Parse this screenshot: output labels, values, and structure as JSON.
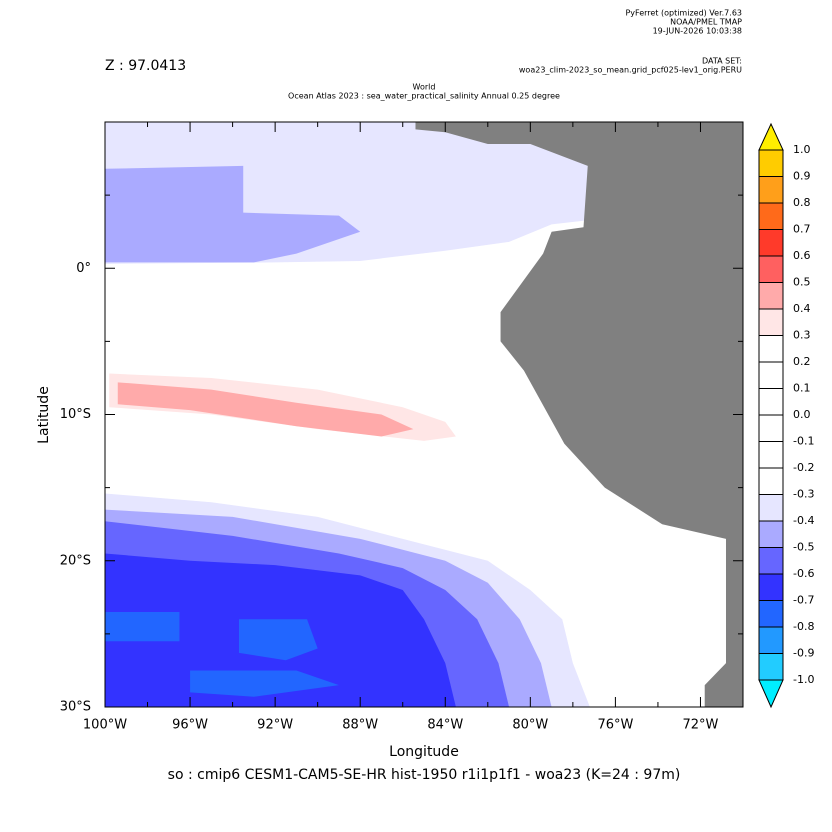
{
  "header": {
    "program": "PyFerret (optimized) Ver.7.63",
    "lab": "NOAA/PMEL TMAP",
    "date": "19-JUN-2026 10:03:38",
    "dataset_label": "DATA SET:",
    "dataset": "woa23_clim-2023_so_mean.grid_pcf025-lev1_orig.PERU",
    "z": "Z : 97.0413"
  },
  "chart_data": {
    "type": "map",
    "title": "World",
    "subtitle": "Ocean Atlas 2023 : sea_water_practical_salinity Annual  0.25 degree",
    "x_label": "Longitude",
    "y_label": "Latitude",
    "footer": "so : cmip6 CESM1-CAM5-SE-HR hist-1950 r1i1p1f1 - woa23  (K=24 : 97m)",
    "xlim": [
      -100,
      -70
    ],
    "ylim": [
      -30,
      10
    ],
    "xticks": [
      {
        "value": -100,
        "label": "100°W"
      },
      {
        "value": -96,
        "label": "96°W"
      },
      {
        "value": -92,
        "label": "92°W"
      },
      {
        "value": -88,
        "label": "88°W"
      },
      {
        "value": -84,
        "label": "84°W"
      },
      {
        "value": -80,
        "label": "80°W"
      },
      {
        "value": -76,
        "label": "76°W"
      },
      {
        "value": -72,
        "label": "72°W"
      }
    ],
    "xminorticks": [
      -98,
      -94,
      -90,
      -86,
      -82,
      -78,
      -74
    ],
    "yticks": [
      {
        "value": 0,
        "label": "0°"
      },
      {
        "value": -10,
        "label": "10°S"
      },
      {
        "value": -20,
        "label": "20°S"
      },
      {
        "value": -30,
        "label": "30°S"
      }
    ],
    "yminorticks": [
      5,
      -5,
      -15,
      -25
    ],
    "land_color": "#808080",
    "ocean_color": "#ffffff",
    "land": [
      [
        -85.4,
        10
      ],
      [
        -70,
        10
      ],
      [
        -70,
        -30
      ],
      [
        -71.8,
        -30
      ],
      [
        -71.8,
        -28.5
      ],
      [
        -70.8,
        -27
      ],
      [
        -70.8,
        -18.5
      ],
      [
        -73.8,
        -17.5
      ],
      [
        -76.5,
        -15
      ],
      [
        -78.4,
        -12
      ],
      [
        -80.3,
        -7
      ],
      [
        -81.4,
        -5
      ],
      [
        -81.4,
        -3
      ],
      [
        -80.4,
        -1
      ],
      [
        -79.4,
        1
      ],
      [
        -79,
        2.5
      ],
      [
        -77.5,
        2.8
      ],
      [
        -77.3,
        7
      ],
      [
        -80,
        8.5
      ],
      [
        -82,
        8.5
      ],
      [
        -84,
        9.3
      ],
      [
        -85.4,
        9.5
      ]
    ],
    "regions": [
      {
        "value": -0.35,
        "points": [
          [
            -100,
            10
          ],
          [
            -77.2,
            10
          ],
          [
            -77.2,
            3.3
          ],
          [
            -79,
            3
          ],
          [
            -81,
            1.8
          ],
          [
            -84,
            1.2
          ],
          [
            -88,
            0.5
          ],
          [
            -92,
            0.4
          ],
          [
            -100,
            0.3
          ]
        ]
      },
      {
        "value": -0.45,
        "points": [
          [
            -100,
            6.8
          ],
          [
            -93.5,
            7
          ],
          [
            -93.5,
            3.8
          ],
          [
            -89,
            3.6
          ],
          [
            -88,
            2.5
          ],
          [
            -91,
            1
          ],
          [
            -93,
            0.4
          ],
          [
            -100,
            0.4
          ]
        ]
      },
      {
        "value": 0.35,
        "points": [
          [
            -99.8,
            -7.2
          ],
          [
            -95,
            -7.5
          ],
          [
            -90,
            -8.3
          ],
          [
            -86,
            -9.5
          ],
          [
            -84,
            -10.5
          ],
          [
            -83.5,
            -11.5
          ],
          [
            -85,
            -11.8
          ],
          [
            -90,
            -11
          ],
          [
            -95,
            -10
          ],
          [
            -99.8,
            -9.5
          ]
        ]
      },
      {
        "value": 0.45,
        "points": [
          [
            -99.4,
            -7.8
          ],
          [
            -95,
            -8.3
          ],
          [
            -91,
            -9.2
          ],
          [
            -87,
            -10
          ],
          [
            -85.5,
            -11
          ],
          [
            -87,
            -11.5
          ],
          [
            -91,
            -10.8
          ],
          [
            -96,
            -9.7
          ],
          [
            -99.4,
            -9.3
          ]
        ]
      },
      {
        "value": -0.35,
        "points": [
          [
            -100,
            -15.4
          ],
          [
            -95,
            -16
          ],
          [
            -90,
            -17
          ],
          [
            -86,
            -18.5
          ],
          [
            -82,
            -20
          ],
          [
            -80,
            -22
          ],
          [
            -78.5,
            -24
          ],
          [
            -78,
            -27
          ],
          [
            -77.2,
            -30
          ],
          [
            -100,
            -30
          ]
        ]
      },
      {
        "value": -0.45,
        "points": [
          [
            -100,
            -16.5
          ],
          [
            -94,
            -17
          ],
          [
            -88,
            -18.5
          ],
          [
            -84,
            -20
          ],
          [
            -82,
            -21.5
          ],
          [
            -80.5,
            -24
          ],
          [
            -79.5,
            -27
          ],
          [
            -79,
            -30
          ],
          [
            -100,
            -30
          ]
        ]
      },
      {
        "value": -0.55,
        "points": [
          [
            -100,
            -17.3
          ],
          [
            -94,
            -18.3
          ],
          [
            -89,
            -19.5
          ],
          [
            -86,
            -20.5
          ],
          [
            -84,
            -22
          ],
          [
            -82.5,
            -24
          ],
          [
            -81.5,
            -27
          ],
          [
            -81,
            -30
          ],
          [
            -100,
            -30
          ]
        ]
      },
      {
        "value": -0.65,
        "points": [
          [
            -100,
            -19.5
          ],
          [
            -96,
            -20
          ],
          [
            -92,
            -20.3
          ],
          [
            -88,
            -21
          ],
          [
            -86,
            -22
          ],
          [
            -85,
            -24
          ],
          [
            -84,
            -27
          ],
          [
            -83.5,
            -30
          ],
          [
            -100,
            -30
          ]
        ]
      },
      {
        "value": -0.75,
        "points": [
          [
            -100,
            -23.5
          ],
          [
            -96.5,
            -23.5
          ],
          [
            -96.5,
            -25.5
          ],
          [
            -100,
            -25.5
          ]
        ]
      },
      {
        "value": -0.75,
        "points": [
          [
            -93.7,
            -24
          ],
          [
            -90.5,
            -24
          ],
          [
            -90,
            -26
          ],
          [
            -91.5,
            -26.8
          ],
          [
            -93.7,
            -26.3
          ]
        ]
      },
      {
        "value": -0.75,
        "points": [
          [
            -96,
            -27.5
          ],
          [
            -91,
            -27.5
          ],
          [
            -89,
            -28.5
          ],
          [
            -93,
            -29.3
          ],
          [
            -96,
            -29
          ]
        ]
      }
    ],
    "colorbar": {
      "levels": [
        {
          "value": 1.0,
          "label": "1.0"
        },
        0.9,
        0.8,
        0.7,
        0.6,
        0.5,
        0.4,
        0.3,
        0.2,
        0.1,
        {
          "value": 0.0,
          "label": "0.0"
        },
        -0.1,
        -0.2,
        -0.3,
        -0.4,
        -0.5,
        -0.6,
        -0.7,
        -0.8,
        -0.9,
        {
          "value": -1.0,
          "label": "-1.0"
        }
      ],
      "over_color": "#ffee00",
      "under_color": "#00eeff",
      "colors": [
        "#ffcc00",
        "#ff9f1a",
        "#ff6a1a",
        "#ff3a2a",
        "#ff6060",
        "#ffaaaa",
        "#ffe6e6",
        "#ffffff",
        "#ffffff",
        "#ffffff",
        "#ffffff",
        "#ffffff",
        "#ffffff",
        "#e6e6ff",
        "#aaaaff",
        "#6666ff",
        "#3333ff",
        "#2266ff",
        "#2299ff",
        "#22ccff"
      ]
    }
  }
}
